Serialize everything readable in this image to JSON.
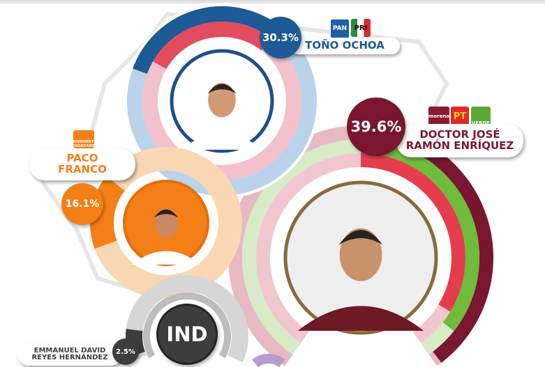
{
  "chart_data": {
    "type": "radial-bar",
    "unit": "%",
    "candidates": [
      {
        "name": "TOÑO OCHOA",
        "value": 30.3,
        "label": "30.3%",
        "parties": [
          "PAN",
          "PRI"
        ],
        "color": "#1d5a96",
        "secondary_color": "#e34b5e",
        "light_color": "#b9d3ea"
      },
      {
        "name": "DOCTOR JOSÉ RAMÓN ENRÍQUEZ",
        "name_lines": [
          "DOCTOR JOSÉ",
          "RAMÓN ENRÍQUEZ"
        ],
        "value": 39.6,
        "label": "39.6%",
        "parties": [
          "morena",
          "PT",
          "VERDE"
        ],
        "color": "#7a1630",
        "secondary_color": "#e43e4e",
        "tertiary_color": "#6fbb3a",
        "light_color": "#e8b9c3"
      },
      {
        "name": "PACO FRANCO",
        "name_lines": [
          "PACO",
          "FRANCO"
        ],
        "value": 16.1,
        "label": "16.1%",
        "parties": [
          "MOVIMIENTO CIUDADANO"
        ],
        "color": "#f57f17",
        "light_color": "#f9d7b3"
      },
      {
        "name": "EMMANUEL DAVID REYES HERNÁNDEZ",
        "name_lines": [
          "EMMANUEL DAVID",
          "REYES HERNÁNDEZ"
        ],
        "value": 2.5,
        "label": "2.5%",
        "parties": [
          "IND"
        ],
        "color": "#3d3d3d",
        "light_color": "#d6d6d6"
      }
    ]
  }
}
